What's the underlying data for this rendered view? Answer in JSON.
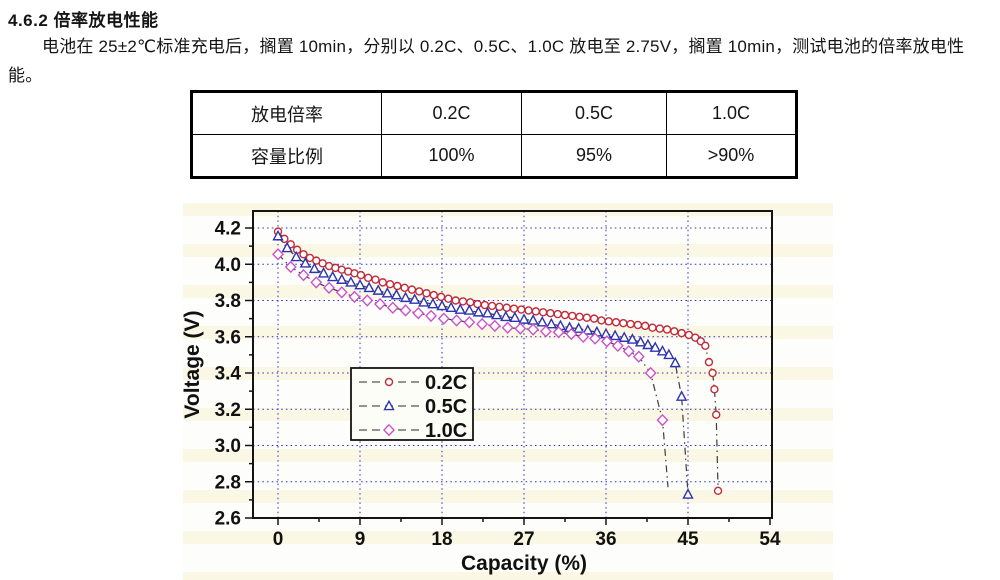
{
  "section": {
    "heading": "4.6.2 倍率放电性能",
    "paragraph": "电池在 25±2℃标准充电后，搁置 10min，分别以 0.2C、0.5C、1.0C 放电至 2.75V，搁置 10min，测试电池的倍率放电性能。"
  },
  "table": {
    "rows": [
      {
        "cells": [
          "放电倍率",
          "0.2C",
          "0.5C",
          "1.0C"
        ]
      },
      {
        "cells": [
          "容量比例",
          "100%",
          "95%",
          ">90%"
        ]
      }
    ]
  },
  "chart_data": {
    "type": "line",
    "title": "",
    "xlabel": "Capacity (%)",
    "ylabel": "Voltage (V)",
    "xticks": [
      0,
      9,
      18,
      27,
      36,
      45,
      54
    ],
    "yticks": [
      2.6,
      2.8,
      3.0,
      3.2,
      3.4,
      3.6,
      3.8,
      4.0,
      4.2
    ],
    "xlim": [
      0,
      54
    ],
    "ylim": [
      2.6,
      4.2
    ],
    "grid": true,
    "grid_color": "#2c2cc8",
    "line_color": "#3c3c3c",
    "legend_position": "inside-left",
    "series": [
      {
        "name": "0.2C",
        "marker": "circle",
        "color": "#c22a38",
        "points": [
          [
            0,
            4.18
          ],
          [
            0.7,
            4.14
          ],
          [
            1.4,
            4.11
          ],
          [
            2.1,
            4.08
          ],
          [
            2.8,
            4.055
          ],
          [
            3.5,
            4.035
          ],
          [
            4.2,
            4.02
          ],
          [
            4.9,
            4.005
          ],
          [
            5.6,
            3.99
          ],
          [
            6.3,
            3.98
          ],
          [
            7.0,
            3.97
          ],
          [
            7.7,
            3.96
          ],
          [
            8.4,
            3.95
          ],
          [
            9.1,
            3.94
          ],
          [
            9.9,
            3.925
          ],
          [
            10.7,
            3.915
          ],
          [
            11.5,
            3.9
          ],
          [
            12.3,
            3.89
          ],
          [
            13.1,
            3.88
          ],
          [
            13.9,
            3.87
          ],
          [
            14.7,
            3.86
          ],
          [
            15.5,
            3.85
          ],
          [
            16.3,
            3.84
          ],
          [
            17.1,
            3.83
          ],
          [
            17.9,
            3.82
          ],
          [
            18.7,
            3.81
          ],
          [
            19.5,
            3.8
          ],
          [
            20.3,
            3.795
          ],
          [
            21.1,
            3.79
          ],
          [
            21.9,
            3.78
          ],
          [
            22.7,
            3.775
          ],
          [
            23.5,
            3.77
          ],
          [
            24.3,
            3.765
          ],
          [
            25.1,
            3.76
          ],
          [
            25.9,
            3.755
          ],
          [
            26.7,
            3.75
          ],
          [
            27.5,
            3.745
          ],
          [
            28.3,
            3.74
          ],
          [
            29.1,
            3.735
          ],
          [
            29.9,
            3.73
          ],
          [
            30.7,
            3.725
          ],
          [
            31.5,
            3.72
          ],
          [
            32.3,
            3.715
          ],
          [
            33.1,
            3.71
          ],
          [
            33.9,
            3.705
          ],
          [
            34.7,
            3.7
          ],
          [
            35.5,
            3.69
          ],
          [
            36.3,
            3.685
          ],
          [
            37.1,
            3.68
          ],
          [
            37.9,
            3.675
          ],
          [
            38.7,
            3.67
          ],
          [
            39.5,
            3.665
          ],
          [
            40.3,
            3.66
          ],
          [
            41.1,
            3.65
          ],
          [
            41.9,
            3.645
          ],
          [
            42.7,
            3.64
          ],
          [
            43.5,
            3.63
          ],
          [
            44.3,
            3.62
          ],
          [
            45.1,
            3.61
          ],
          [
            45.8,
            3.595
          ],
          [
            46.4,
            3.575
          ],
          [
            46.9,
            3.55
          ],
          [
            47.3,
            3.46
          ],
          [
            47.7,
            3.4
          ],
          [
            47.9,
            3.31
          ],
          [
            48.1,
            3.17
          ],
          [
            48.3,
            2.75
          ]
        ]
      },
      {
        "name": "0.5C",
        "marker": "triangle",
        "color": "#2c34b0",
        "points": [
          [
            0,
            4.155
          ],
          [
            1,
            4.09
          ],
          [
            2,
            4.04
          ],
          [
            3,
            4.005
          ],
          [
            4,
            3.975
          ],
          [
            5,
            3.95
          ],
          [
            6,
            3.93
          ],
          [
            7,
            3.915
          ],
          [
            8,
            3.9
          ],
          [
            9,
            3.885
          ],
          [
            10,
            3.87
          ],
          [
            11,
            3.855
          ],
          [
            12,
            3.84
          ],
          [
            13,
            3.83
          ],
          [
            14,
            3.815
          ],
          [
            15,
            3.805
          ],
          [
            16,
            3.79
          ],
          [
            17,
            3.78
          ],
          [
            18,
            3.77
          ],
          [
            19,
            3.76
          ],
          [
            20,
            3.75
          ],
          [
            21,
            3.745
          ],
          [
            22,
            3.735
          ],
          [
            23,
            3.73
          ],
          [
            24,
            3.72
          ],
          [
            25,
            3.71
          ],
          [
            26,
            3.705
          ],
          [
            27,
            3.695
          ],
          [
            28,
            3.69
          ],
          [
            29,
            3.68
          ],
          [
            30,
            3.67
          ],
          [
            31,
            3.66
          ],
          [
            32,
            3.65
          ],
          [
            33,
            3.645
          ],
          [
            34,
            3.635
          ],
          [
            35,
            3.625
          ],
          [
            36,
            3.615
          ],
          [
            37,
            3.605
          ],
          [
            38,
            3.595
          ],
          [
            38.9,
            3.585
          ],
          [
            39.8,
            3.57
          ],
          [
            40.6,
            3.555
          ],
          [
            41.4,
            3.54
          ],
          [
            42.2,
            3.52
          ],
          [
            42.9,
            3.5
          ],
          [
            43.6,
            3.455
          ],
          [
            44.3,
            3.27
          ],
          [
            45,
            2.73
          ]
        ]
      },
      {
        "name": "1.0C",
        "marker": "diamond",
        "color": "#cb52cb",
        "points": [
          [
            0,
            4.055
          ],
          [
            1.4,
            3.985
          ],
          [
            2.8,
            3.94
          ],
          [
            4.2,
            3.9
          ],
          [
            5.6,
            3.87
          ],
          [
            7,
            3.845
          ],
          [
            8.4,
            3.82
          ],
          [
            9.8,
            3.8
          ],
          [
            11.2,
            3.78
          ],
          [
            12.6,
            3.76
          ],
          [
            14,
            3.745
          ],
          [
            15.4,
            3.73
          ],
          [
            16.8,
            3.715
          ],
          [
            18.2,
            3.7
          ],
          [
            19.6,
            3.69
          ],
          [
            21,
            3.68
          ],
          [
            22.4,
            3.67
          ],
          [
            23.8,
            3.66
          ],
          [
            25.2,
            3.65
          ],
          [
            26.6,
            3.645
          ],
          [
            28,
            3.64
          ],
          [
            29.4,
            3.63
          ],
          [
            30.8,
            3.625
          ],
          [
            32.2,
            3.615
          ],
          [
            33.5,
            3.6
          ],
          [
            34.8,
            3.59
          ],
          [
            36.1,
            3.575
          ],
          [
            37.3,
            3.55
          ],
          [
            38.5,
            3.52
          ],
          [
            39.6,
            3.49
          ],
          [
            40.9,
            3.4
          ],
          [
            42.2,
            3.14
          ]
        ],
        "tail": [
          [
            42.8,
            2.77
          ]
        ]
      }
    ]
  }
}
